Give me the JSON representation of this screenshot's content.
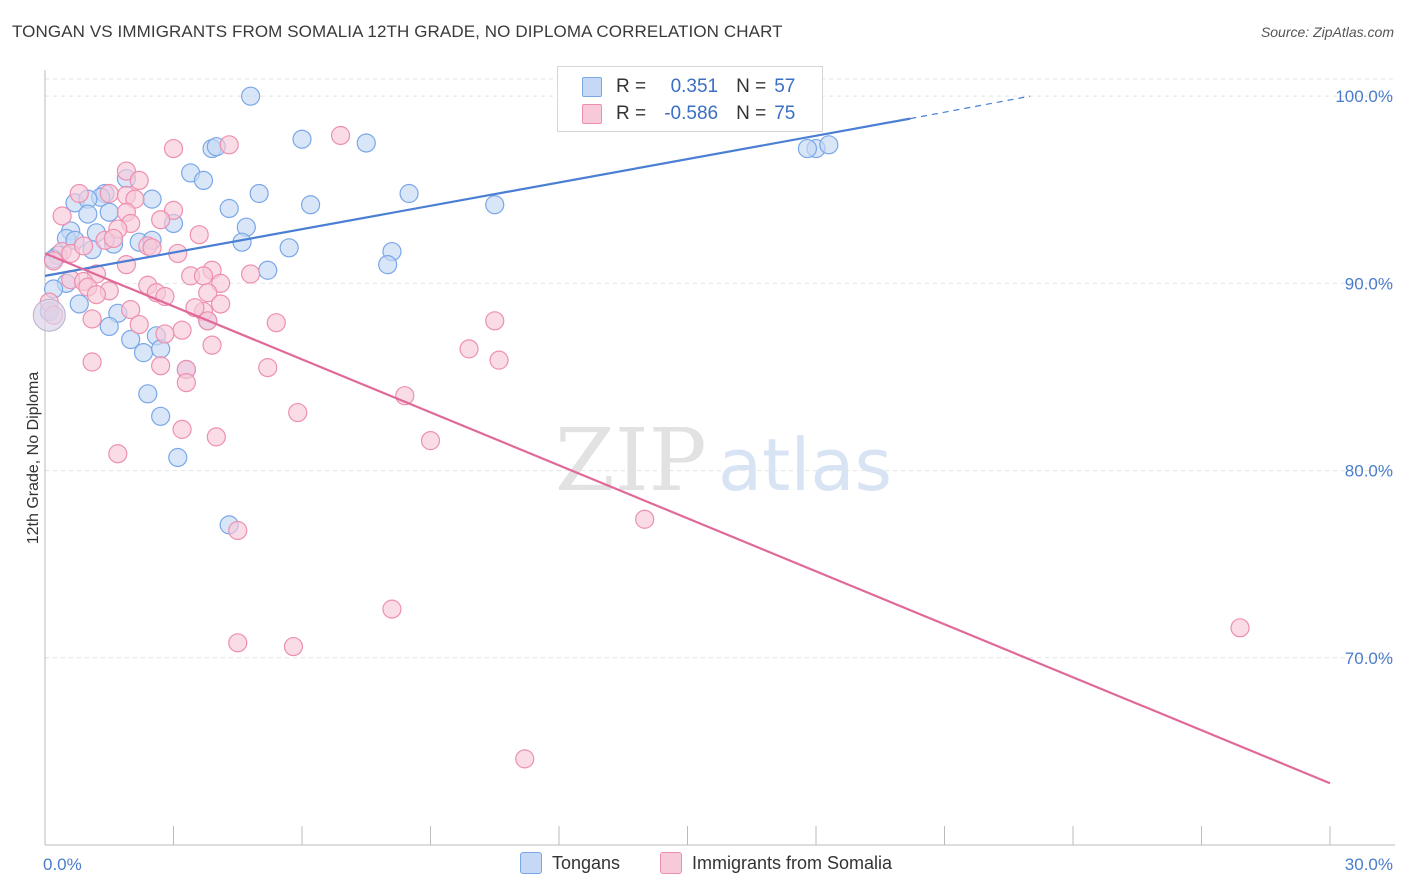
{
  "title": "TONGAN VS IMMIGRANTS FROM SOMALIA 12TH GRADE, NO DIPLOMA CORRELATION CHART",
  "source": "Source: ZipAtlas.com",
  "watermark": {
    "zip": "ZIP",
    "atlas": "atlas"
  },
  "legend": {
    "r_label": "R =",
    "n_label": "N =",
    "rows": [
      {
        "r": "0.351",
        "n": "57",
        "color": "#7aa7e8",
        "fill": "#c5d8f5"
      },
      {
        "r": "-0.586",
        "n": "75",
        "color": "#ee8fb0",
        "fill": "#f8cad9"
      }
    ]
  },
  "bottom_legend": [
    {
      "label": "Tongans",
      "fill": "#c5d8f5",
      "stroke": "#7aa7e8"
    },
    {
      "label": "Immigrants from Somalia",
      "fill": "#f8cad9",
      "stroke": "#ee8fb0"
    }
  ],
  "chart_data": {
    "type": "scatter",
    "title": "TONGAN VS IMMIGRANTS FROM SOMALIA 12TH GRADE, NO DIPLOMA CORRELATION CHART",
    "xlabel": "",
    "ylabel": "12th Grade, No Diploma",
    "xlim": [
      0,
      30
    ],
    "ylim": [
      60,
      103
    ],
    "x_tick_labels": [
      {
        "value": 0,
        "label": "0.0%"
      },
      {
        "value": 30,
        "label": "30.0%"
      }
    ],
    "y_tick_labels": [
      {
        "value": 100,
        "label": "100.0%"
      },
      {
        "value": 90,
        "label": "90.0%"
      },
      {
        "value": 80,
        "label": "80.0%"
      },
      {
        "value": 70,
        "label": "70.0%"
      }
    ],
    "grid": true,
    "series": [
      {
        "name": "Tongans",
        "color": "#4a7fd4",
        "fill": "#c5d8f5",
        "stroke": "#7aa7e8",
        "trend": {
          "x0": 0,
          "y0": 90.4,
          "x1": 20.2,
          "y1": 98.8,
          "dash_to_x": 23.0,
          "dash_to_y": 100.0
        },
        "points": [
          [
            4.8,
            100.0
          ],
          [
            3.9,
            97.2
          ],
          [
            4.0,
            97.3
          ],
          [
            6.0,
            97.7
          ],
          [
            7.5,
            97.5
          ],
          [
            18.0,
            97.2
          ],
          [
            18.3,
            97.4
          ],
          [
            3.4,
            95.9
          ],
          [
            3.7,
            95.5
          ],
          [
            1.9,
            95.6
          ],
          [
            1.4,
            94.8
          ],
          [
            1.3,
            94.6
          ],
          [
            0.7,
            94.3
          ],
          [
            1.0,
            94.5
          ],
          [
            2.5,
            94.5
          ],
          [
            5.0,
            94.8
          ],
          [
            6.2,
            94.2
          ],
          [
            8.5,
            94.8
          ],
          [
            10.5,
            94.2
          ],
          [
            4.3,
            94.0
          ],
          [
            1.0,
            93.7
          ],
          [
            1.5,
            93.8
          ],
          [
            3.0,
            93.2
          ],
          [
            4.7,
            93.0
          ],
          [
            0.6,
            92.8
          ],
          [
            1.2,
            92.7
          ],
          [
            0.5,
            92.4
          ],
          [
            0.7,
            92.3
          ],
          [
            1.6,
            92.1
          ],
          [
            2.2,
            92.2
          ],
          [
            2.5,
            92.3
          ],
          [
            4.6,
            92.2
          ],
          [
            5.7,
            91.9
          ],
          [
            8.1,
            91.7
          ],
          [
            0.3,
            91.5
          ],
          [
            1.1,
            91.8
          ],
          [
            0.2,
            91.3
          ],
          [
            8.0,
            91.0
          ],
          [
            5.2,
            90.7
          ],
          [
            0.5,
            90.0
          ],
          [
            0.2,
            89.7
          ],
          [
            0.1,
            88.5
          ],
          [
            0.8,
            88.9
          ],
          [
            1.7,
            88.4
          ],
          [
            3.8,
            88.0
          ],
          [
            1.5,
            87.7
          ],
          [
            2.6,
            87.2
          ],
          [
            2.0,
            87.0
          ],
          [
            2.3,
            86.3
          ],
          [
            2.7,
            86.5
          ],
          [
            3.3,
            85.4
          ],
          [
            2.4,
            84.1
          ],
          [
            2.7,
            82.9
          ],
          [
            3.1,
            80.7
          ],
          [
            4.3,
            77.1
          ],
          [
            12.4,
            99.2
          ],
          [
            17.8,
            97.2
          ]
        ]
      },
      {
        "name": "Immigrants from Somalia",
        "color": "#e0699a",
        "fill": "#f8cad9",
        "stroke": "#ee8fb0",
        "trend": {
          "x0": 0,
          "y0": 91.6,
          "x1": 30,
          "y1": 63.3
        },
        "points": [
          [
            6.9,
            97.9
          ],
          [
            4.3,
            97.4
          ],
          [
            3.0,
            97.2
          ],
          [
            1.9,
            96.0
          ],
          [
            2.2,
            95.5
          ],
          [
            1.5,
            94.8
          ],
          [
            1.9,
            94.7
          ],
          [
            2.1,
            94.5
          ],
          [
            0.8,
            94.8
          ],
          [
            3.0,
            93.9
          ],
          [
            1.9,
            93.8
          ],
          [
            0.4,
            93.6
          ],
          [
            2.7,
            93.4
          ],
          [
            2.0,
            93.2
          ],
          [
            1.7,
            92.9
          ],
          [
            3.6,
            92.6
          ],
          [
            1.4,
            92.3
          ],
          [
            2.4,
            92.0
          ],
          [
            2.5,
            91.9
          ],
          [
            0.4,
            91.7
          ],
          [
            0.6,
            91.6
          ],
          [
            3.1,
            91.6
          ],
          [
            0.2,
            91.2
          ],
          [
            1.9,
            91.0
          ],
          [
            3.9,
            90.7
          ],
          [
            4.8,
            90.5
          ],
          [
            3.4,
            90.4
          ],
          [
            3.7,
            90.4
          ],
          [
            1.2,
            90.5
          ],
          [
            0.6,
            90.2
          ],
          [
            4.1,
            90.0
          ],
          [
            0.9,
            90.1
          ],
          [
            1.0,
            89.8
          ],
          [
            2.4,
            89.9
          ],
          [
            1.5,
            89.6
          ],
          [
            2.6,
            89.5
          ],
          [
            3.8,
            89.5
          ],
          [
            1.2,
            89.4
          ],
          [
            0.1,
            89.0
          ],
          [
            4.1,
            88.9
          ],
          [
            3.7,
            88.5
          ],
          [
            2.0,
            88.6
          ],
          [
            1.1,
            88.1
          ],
          [
            3.8,
            88.0
          ],
          [
            5.4,
            87.9
          ],
          [
            10.5,
            88.0
          ],
          [
            2.2,
            87.8
          ],
          [
            3.2,
            87.5
          ],
          [
            2.8,
            87.3
          ],
          [
            3.9,
            86.7
          ],
          [
            9.9,
            86.5
          ],
          [
            10.6,
            85.9
          ],
          [
            1.1,
            85.8
          ],
          [
            2.7,
            85.6
          ],
          [
            5.2,
            85.5
          ],
          [
            3.3,
            85.4
          ],
          [
            3.3,
            84.7
          ],
          [
            8.4,
            84.0
          ],
          [
            5.9,
            83.1
          ],
          [
            3.2,
            82.2
          ],
          [
            4.0,
            81.8
          ],
          [
            9.0,
            81.6
          ],
          [
            1.7,
            80.9
          ],
          [
            14.0,
            77.4
          ],
          [
            4.5,
            76.8
          ],
          [
            8.1,
            72.6
          ],
          [
            4.5,
            70.8
          ],
          [
            5.8,
            70.6
          ],
          [
            27.9,
            71.6
          ],
          [
            11.2,
            64.6
          ],
          [
            0.2,
            88.3
          ],
          [
            2.8,
            89.3
          ],
          [
            1.6,
            92.4
          ],
          [
            0.9,
            92.0
          ],
          [
            3.5,
            88.7
          ]
        ]
      }
    ]
  }
}
